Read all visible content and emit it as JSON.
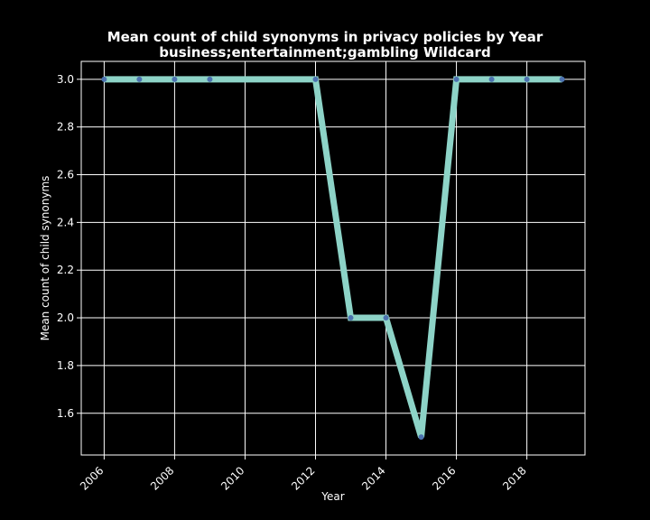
{
  "chart_data": {
    "type": "line",
    "title": "Mean count of child synonyms in privacy policies by Year",
    "subtitle": "business;entertainment;gambling Wildcard",
    "xlabel": "Year",
    "ylabel": "Mean count of child synonyms",
    "x": [
      2006,
      2007,
      2008,
      2009,
      2012,
      2013,
      2014,
      2015,
      2016,
      2017,
      2018,
      2019
    ],
    "series": [
      {
        "values": [
          3.0,
          3.0,
          3.0,
          3.0,
          3.0,
          2.0,
          2.0,
          1.5,
          3.0,
          3.0,
          3.0,
          3.0
        ]
      }
    ],
    "xlim": [
      2005.35,
      2019.65
    ],
    "ylim": [
      1.425,
      3.075
    ],
    "xticks": [
      2006,
      2008,
      2010,
      2012,
      2014,
      2016,
      2018
    ],
    "yticks": [
      "1.6",
      "1.8",
      "2.0",
      "2.2",
      "2.4",
      "2.6",
      "2.8",
      "3.0"
    ],
    "grid": true,
    "colors": {
      "background": "#000000",
      "line": "#8dd3c7",
      "marker": "#4c72b0",
      "grid": "#ffffff"
    }
  }
}
